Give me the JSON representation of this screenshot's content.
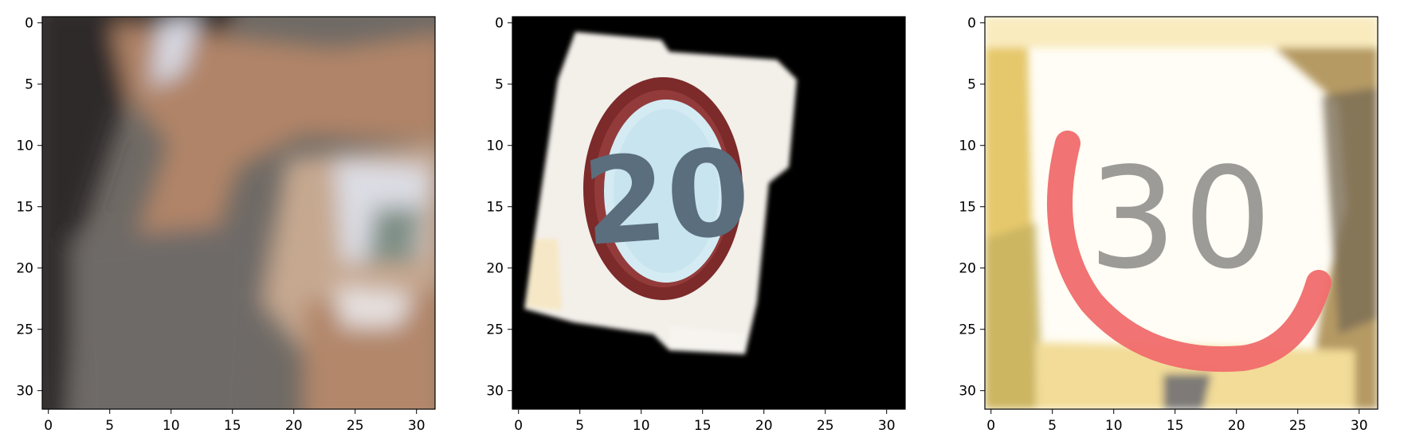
{
  "figure": {
    "panels": [
      {
        "id": "panel-1",
        "image_description": "blurry close-up of a road sign, mostly grey/brown with a white sign edge at right",
        "palette": [
          "#2a2a2a",
          "#6f6a65",
          "#b08468",
          "#c9a088",
          "#e6e6ea",
          "#7f8f8f"
        ],
        "x_ticks": [
          "0",
          "5",
          "10",
          "15",
          "20",
          "25",
          "30"
        ],
        "y_ticks": [
          "0",
          "5",
          "10",
          "15",
          "20",
          "25",
          "30"
        ],
        "xlim": [
          -0.5,
          31.5
        ],
        "ylim": [
          31.5,
          -0.5
        ]
      },
      {
        "id": "panel-2",
        "sign_text": "20",
        "palette": [
          "#000000",
          "#f4f1ee",
          "#7e2a2a",
          "#cfe8f2",
          "#5b6f7f"
        ],
        "x_ticks": [
          "0",
          "5",
          "10",
          "15",
          "20",
          "25",
          "30"
        ],
        "y_ticks": [
          "0",
          "5",
          "10",
          "15",
          "20",
          "25",
          "30"
        ],
        "xlim": [
          -0.5,
          31.5
        ],
        "ylim": [
          31.5,
          -0.5
        ]
      },
      {
        "id": "panel-3",
        "sign_text": "30",
        "palette": [
          "#fffdf5",
          "#f06b6b",
          "#b59a63",
          "#7a7a6a",
          "#e8c96a"
        ],
        "x_ticks": [
          "0",
          "5",
          "10",
          "15",
          "20",
          "25",
          "30"
        ],
        "y_ticks": [
          "0",
          "5",
          "10",
          "15",
          "20",
          "25",
          "30"
        ],
        "xlim": [
          -0.5,
          31.5
        ],
        "ylim": [
          31.5,
          -0.5
        ]
      }
    ]
  }
}
